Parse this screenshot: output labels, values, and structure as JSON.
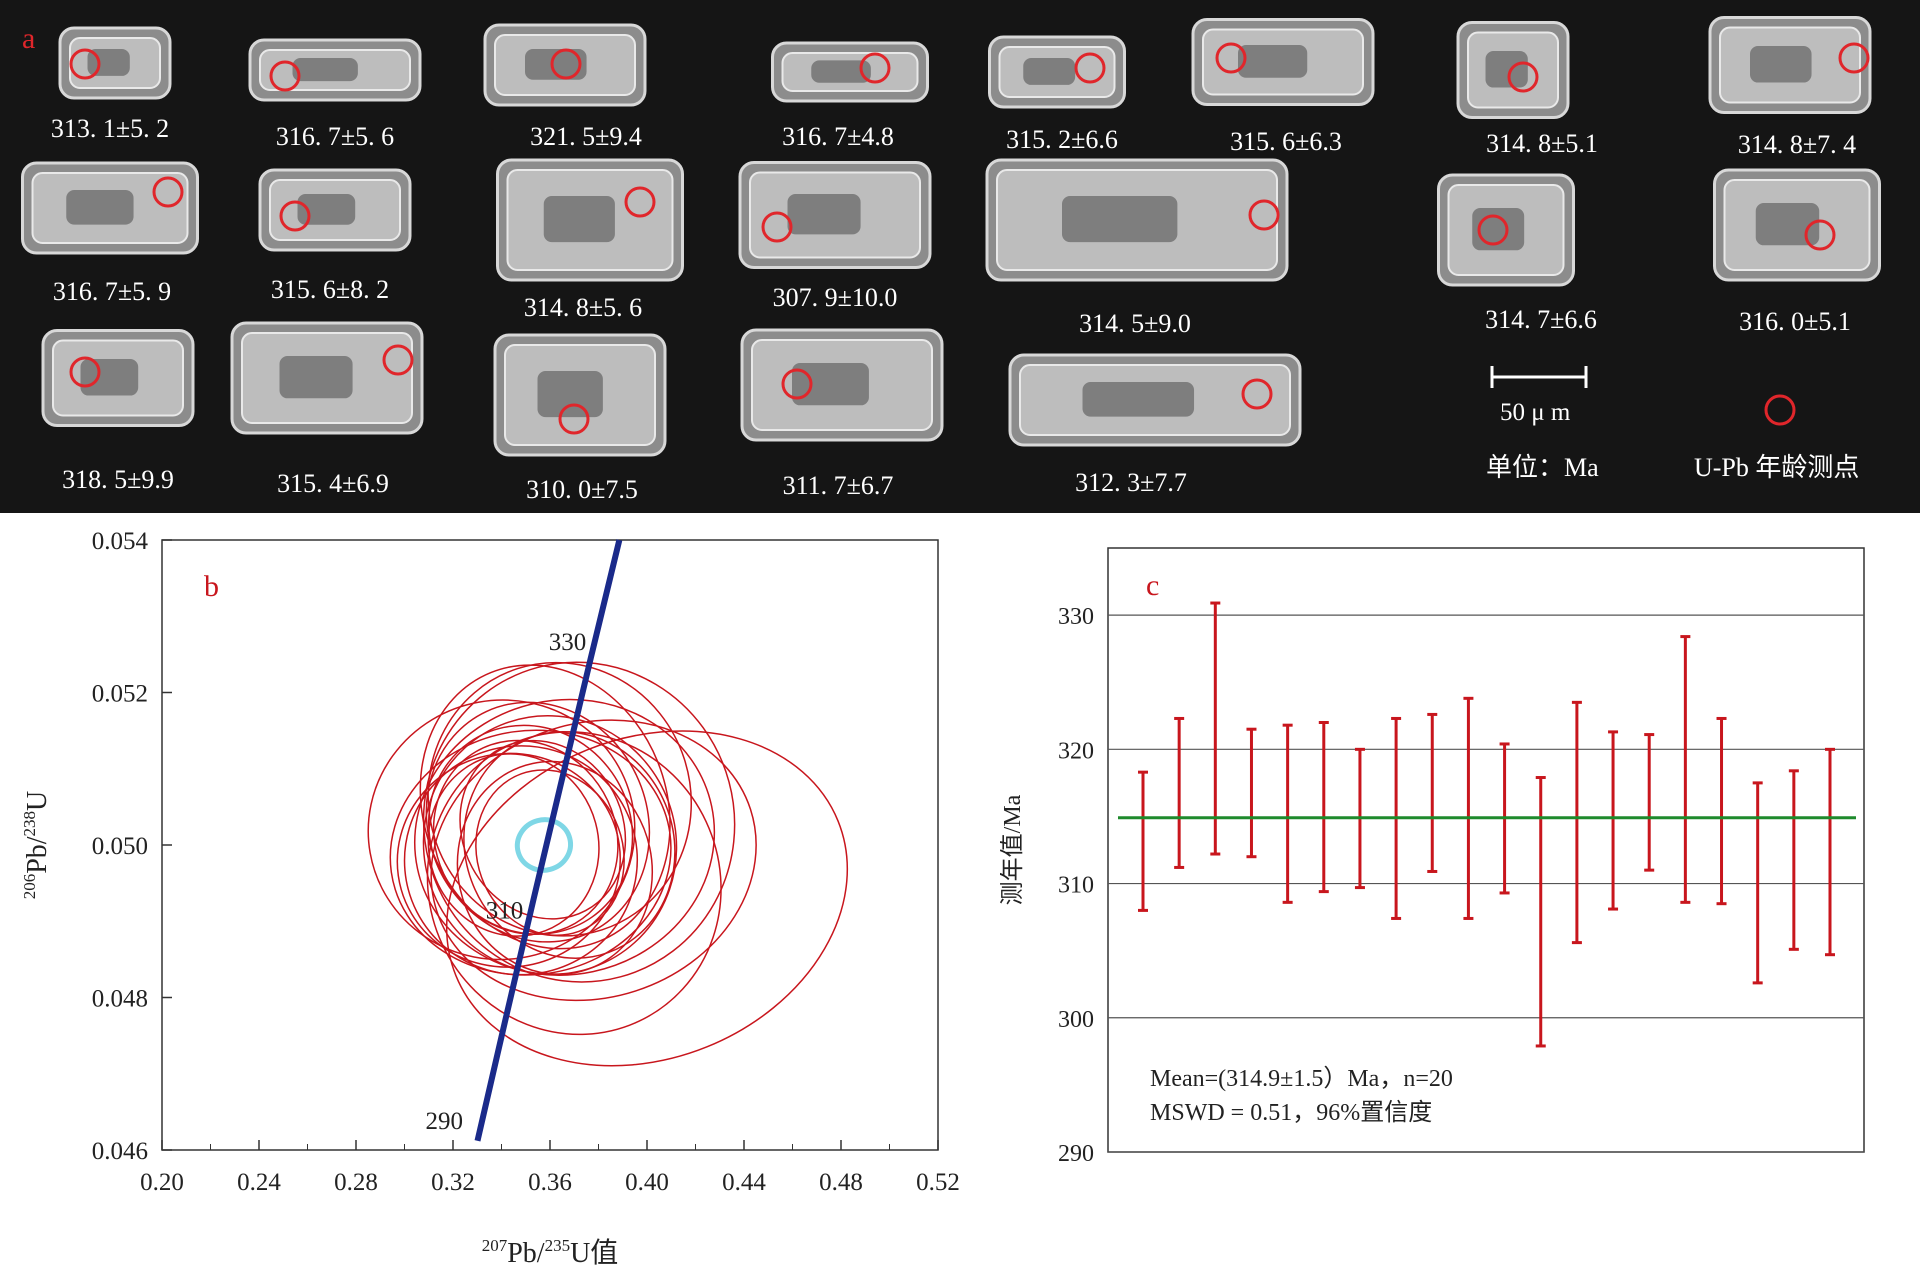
{
  "panel_a": {
    "letter": "a",
    "grains": [
      {
        "label": "313. 1±5. 2"
      },
      {
        "label": "316. 7±5. 6"
      },
      {
        "label": "321. 5±9.4"
      },
      {
        "label": "316. 7±4.8"
      },
      {
        "label": "315. 2±6.6"
      },
      {
        "label": "315. 6±6.3"
      },
      {
        "label": "314. 8±5.1"
      },
      {
        "label": "314. 8±7. 4"
      },
      {
        "label": "316. 7±5. 9"
      },
      {
        "label": "315. 6±8. 2"
      },
      {
        "label": "314. 8±5. 6"
      },
      {
        "label": "307. 9±10.0"
      },
      {
        "label": "314. 5±9.0"
      },
      {
        "label": "314. 7±6.6"
      },
      {
        "label": "316. 0±5.1"
      },
      {
        "label": "318. 5±9.9"
      },
      {
        "label": "315. 4±6.9"
      },
      {
        "label": "310. 0±7.5"
      },
      {
        "label": "311. 7±6.7"
      },
      {
        "label": "312. 3±7.7"
      }
    ],
    "scale_bar_label": "50 μ m",
    "unit_label": "单位：Ma",
    "spot_legend_label": "U-Pb 年龄测点",
    "spot_color": "#e0262b"
  },
  "chart_data": [
    {
      "panel": "b",
      "type": "scatter",
      "title": "",
      "xlabel": "207Pb/235U值",
      "ylabel": "206Pb/238U",
      "xlim": [
        0.2,
        0.52
      ],
      "ylim": [
        0.046,
        0.054
      ],
      "x_ticks": [
        "0.20",
        "0.24",
        "0.28",
        "0.32",
        "0.36",
        "0.40",
        "0.44",
        "0.48",
        "0.52"
      ],
      "y_ticks": [
        "0.046",
        "0.048",
        "0.050",
        "0.052",
        "0.054"
      ],
      "concordia": {
        "color": "#1a2a8a",
        "points": [
          {
            "x": 0.3301,
            "y": 0.04612
          },
          {
            "x": 0.3417,
            "y": 0.04772
          },
          {
            "x": 0.3533,
            "y": 0.0493
          },
          {
            "x": 0.365,
            "y": 0.05087
          },
          {
            "x": 0.3768,
            "y": 0.05245
          },
          {
            "x": 0.3886,
            "y": 0.054
          }
        ],
        "age_labels": [
          {
            "text": "290",
            "x": 0.3301,
            "y": 0.04612
          },
          {
            "text": "310",
            "x": 0.3533,
            "y": 0.0493
          },
          {
            "text": "330",
            "x": 0.3768,
            "y": 0.05245
          }
        ]
      },
      "ellipse_color": "#c8161d",
      "ellipses": [
        {
          "x": 0.366,
          "y": 0.0501,
          "rx": 0.062,
          "ry": 0.0018,
          "rot": -12
        },
        {
          "x": 0.352,
          "y": 0.0499,
          "rx": 0.058,
          "ry": 0.0016,
          "rot": -8
        },
        {
          "x": 0.36,
          "y": 0.05,
          "rx": 0.052,
          "ry": 0.0017,
          "rot": -20
        },
        {
          "x": 0.372,
          "y": 0.0503,
          "rx": 0.064,
          "ry": 0.0021,
          "rot": -15
        },
        {
          "x": 0.348,
          "y": 0.0498,
          "rx": 0.048,
          "ry": 0.0015,
          "rot": -5
        },
        {
          "x": 0.358,
          "y": 0.0505,
          "rx": 0.05,
          "ry": 0.0019,
          "rot": -22
        },
        {
          "x": 0.34,
          "y": 0.0502,
          "rx": 0.055,
          "ry": 0.0017,
          "rot": -10
        },
        {
          "x": 0.378,
          "y": 0.0498,
          "rx": 0.068,
          "ry": 0.0018,
          "rot": -18
        },
        {
          "x": 0.355,
          "y": 0.0503,
          "rx": 0.045,
          "ry": 0.0016,
          "rot": -25
        },
        {
          "x": 0.362,
          "y": 0.0497,
          "rx": 0.04,
          "ry": 0.0014,
          "rot": -12
        },
        {
          "x": 0.35,
          "y": 0.0501,
          "rx": 0.037,
          "ry": 0.0013,
          "rot": -30
        },
        {
          "x": 0.368,
          "y": 0.05,
          "rx": 0.043,
          "ry": 0.0015,
          "rot": -20
        },
        {
          "x": 0.345,
          "y": 0.05,
          "rx": 0.035,
          "ry": 0.0012,
          "rot": -15
        },
        {
          "x": 0.357,
          "y": 0.0502,
          "rx": 0.033,
          "ry": 0.0012,
          "rot": -28
        },
        {
          "x": 0.4,
          "y": 0.0493,
          "rx": 0.085,
          "ry": 0.0021,
          "rot": -22
        },
        {
          "x": 0.37,
          "y": 0.0495,
          "rx": 0.06,
          "ry": 0.002,
          "rot": -25
        },
        {
          "x": 0.36,
          "y": 0.0499,
          "rx": 0.03,
          "ry": 0.0011,
          "rot": -20
        },
        {
          "x": 0.352,
          "y": 0.0502,
          "rx": 0.041,
          "ry": 0.0014,
          "rot": -35
        },
        {
          "x": 0.364,
          "y": 0.0506,
          "rx": 0.054,
          "ry": 0.0018,
          "rot": -18
        },
        {
          "x": 0.343,
          "y": 0.0498,
          "rx": 0.046,
          "ry": 0.0014,
          "rot": -8
        }
      ],
      "mean_ellipse": {
        "x": 0.3575,
        "y": 0.05,
        "rx": 0.011,
        "ry": 0.00033,
        "rot": -15,
        "color": "#7fd7e6"
      }
    },
    {
      "panel": "c",
      "type": "errorbar",
      "title": "",
      "xlabel": "",
      "ylabel": "测年值/Ma",
      "ylim": [
        290,
        335
      ],
      "y_ticks": [
        "290",
        "300",
        "310",
        "320",
        "330"
      ],
      "grid": true,
      "bar_color": "#c8161d",
      "mean_line": {
        "value": 314.9,
        "color": "#1e8a2c"
      },
      "bars": [
        {
          "low": 308.0,
          "high": 318.3
        },
        {
          "low": 311.2,
          "high": 322.3
        },
        {
          "low": 312.2,
          "high": 330.9
        },
        {
          "low": 312.0,
          "high": 321.5
        },
        {
          "low": 308.6,
          "high": 321.8
        },
        {
          "low": 309.4,
          "high": 322.0
        },
        {
          "low": 309.7,
          "high": 320.0
        },
        {
          "low": 307.4,
          "high": 322.3
        },
        {
          "low": 310.9,
          "high": 322.6
        },
        {
          "low": 307.4,
          "high": 323.8
        },
        {
          "low": 309.3,
          "high": 320.4
        },
        {
          "low": 297.9,
          "high": 317.9
        },
        {
          "low": 305.6,
          "high": 323.5
        },
        {
          "low": 308.1,
          "high": 321.3
        },
        {
          "low": 311.0,
          "high": 321.1
        },
        {
          "low": 308.6,
          "high": 328.4
        },
        {
          "low": 308.5,
          "high": 322.3
        },
        {
          "low": 302.6,
          "high": 317.5
        },
        {
          "low": 305.1,
          "high": 318.4
        },
        {
          "low": 304.7,
          "high": 320.0
        }
      ],
      "annotation_line1": "Mean=(314.9±1.5）Ma，n=20",
      "annotation_line2": "MSWD = 0.51，96%置信度"
    }
  ]
}
